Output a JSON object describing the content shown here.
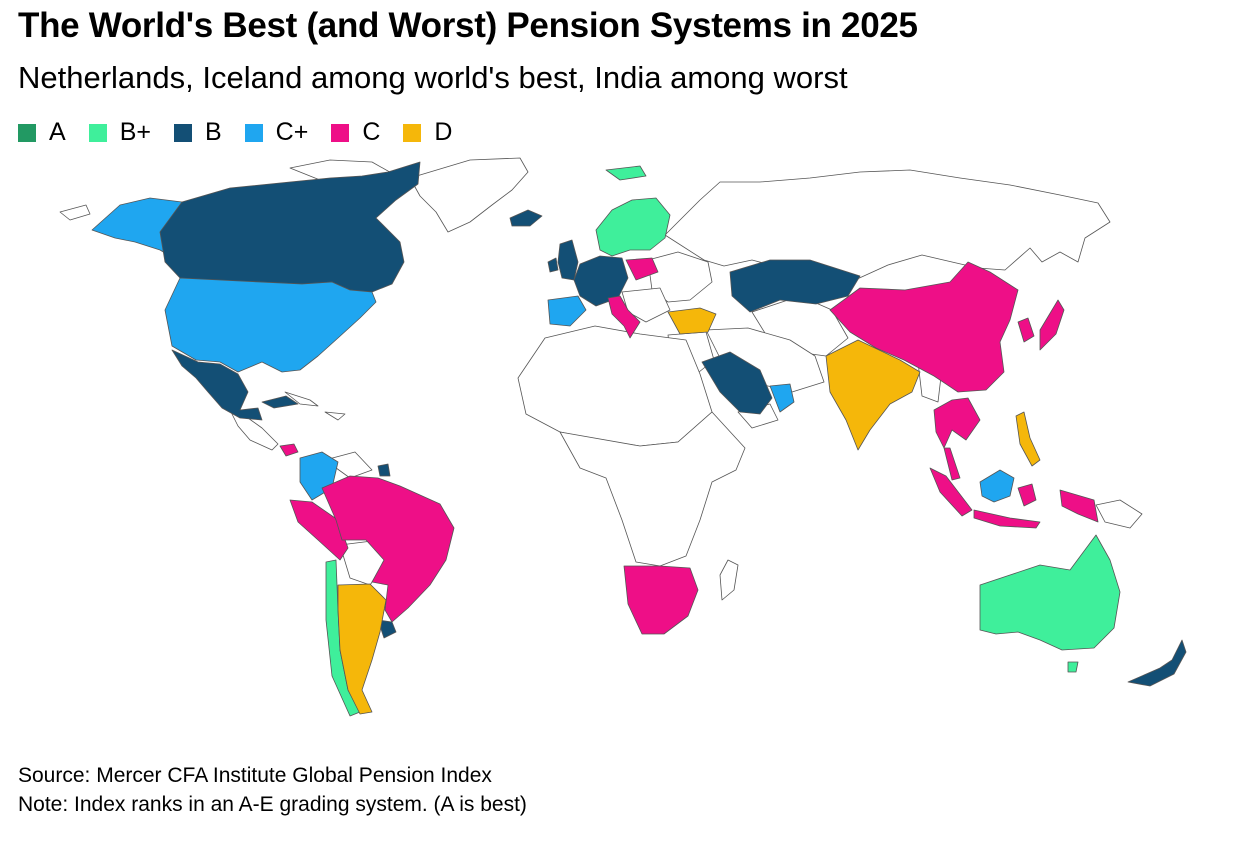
{
  "title": "The World's Best (and Worst) Pension Systems in 2025",
  "subtitle": "Netherlands, Iceland among world's best, India among worst",
  "legend": [
    {
      "label": "A",
      "color": "#229963"
    },
    {
      "label": "B+",
      "color": "#3fef9b"
    },
    {
      "label": "B",
      "color": "#134f75"
    },
    {
      "label": "C+",
      "color": "#1fa6f0"
    },
    {
      "label": "C",
      "color": "#ee0f87"
    },
    {
      "label": "D",
      "color": "#f5b70a"
    }
  ],
  "source": "Source: Mercer CFA Institute Global Pension Index",
  "note": "Note: Index ranks in an A-E grading system. (A is best)"
}
